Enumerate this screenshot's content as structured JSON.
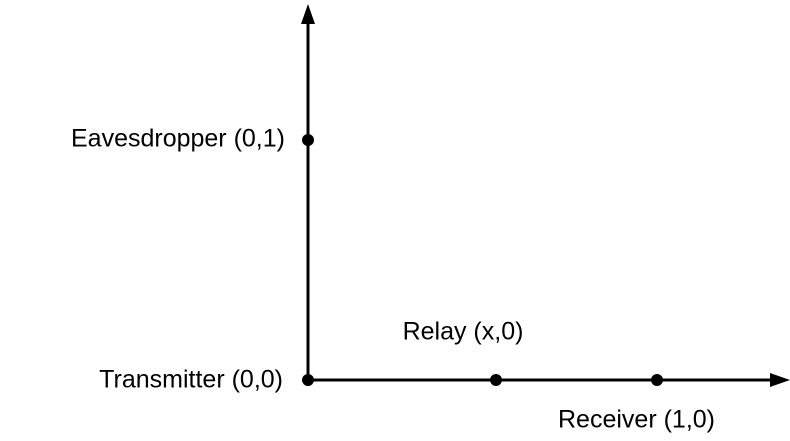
{
  "nodes": [
    {
      "label": "Eavesdropper (0,1)"
    },
    {
      "label": "Transmitter (0,0)"
    },
    {
      "label": "Relay (x,0)"
    },
    {
      "label": "Receiver (1,0)"
    }
  ]
}
